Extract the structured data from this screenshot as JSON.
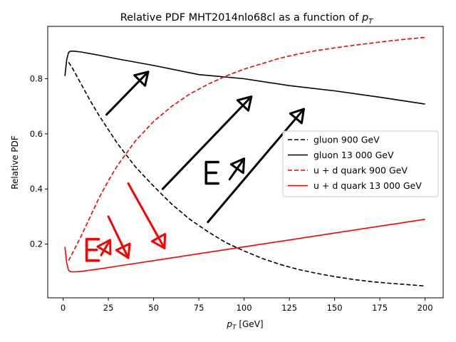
{
  "chart_data": {
    "type": "line",
    "title": "Relative PDF MHT2014nlo68cl as a function of p_T",
    "title_prefix": "Relative PDF MHT2014nlo68cl as a function of ",
    "title_symbol": "p",
    "title_subscript": "T",
    "xlabel_symbol": "p",
    "xlabel_subscript": "T",
    "xlabel_suffix": " [GeV]",
    "ylabel": "Relative PDF",
    "xlim": [
      -8.5,
      210
    ],
    "ylim": [
      0.005,
      0.99
    ],
    "xticks": [
      0,
      25,
      50,
      75,
      100,
      125,
      150,
      175,
      200
    ],
    "yticks": [
      0.2,
      0.4,
      0.6,
      0.8
    ],
    "ytick_labels": [
      "0.2",
      "0.4",
      "0.6",
      "0.8"
    ],
    "grid": false,
    "legend_position": "center-right",
    "series": [
      {
        "name": "gluon 900 GeV",
        "color": "#000000",
        "dash": "dashed",
        "x": [
          3,
          5,
          10,
          15,
          20,
          25,
          30,
          40,
          50,
          60,
          70,
          80,
          90,
          100,
          110,
          120,
          130,
          140,
          150,
          160,
          170,
          180,
          190,
          200
        ],
        "y": [
          0.86,
          0.84,
          0.78,
          0.72,
          0.665,
          0.615,
          0.565,
          0.48,
          0.41,
          0.345,
          0.29,
          0.245,
          0.205,
          0.175,
          0.148,
          0.126,
          0.108,
          0.094,
          0.082,
          0.072,
          0.064,
          0.058,
          0.053,
          0.048
        ]
      },
      {
        "name": "gluon 13 000 GeV",
        "color": "#000000",
        "dash": "solid",
        "x": [
          1,
          2,
          3,
          4,
          6,
          10,
          20,
          30,
          50,
          75,
          100,
          125,
          150,
          175,
          200
        ],
        "y": [
          0.81,
          0.87,
          0.895,
          0.9,
          0.9,
          0.897,
          0.885,
          0.872,
          0.848,
          0.815,
          0.8,
          0.775,
          0.756,
          0.733,
          0.708
        ]
      },
      {
        "name": "u + d quark 900 GeV",
        "color": "#ff0000",
        "dash": "dashed",
        "x": [
          3,
          5,
          10,
          15,
          20,
          25,
          30,
          40,
          50,
          60,
          70,
          80,
          90,
          100,
          110,
          120,
          130,
          140,
          150,
          160,
          170,
          180,
          190,
          200
        ],
        "y": [
          0.14,
          0.165,
          0.23,
          0.3,
          0.37,
          0.43,
          0.485,
          0.575,
          0.645,
          0.7,
          0.745,
          0.78,
          0.81,
          0.835,
          0.855,
          0.875,
          0.89,
          0.902,
          0.912,
          0.921,
          0.929,
          0.937,
          0.944,
          0.95
        ]
      },
      {
        "name": "u + d quark 13 000 GeV",
        "color": "#ff0000",
        "dash": "solid",
        "x": [
          1,
          2,
          3,
          4,
          6,
          10,
          20,
          30,
          50,
          75,
          100,
          125,
          150,
          175,
          200
        ],
        "y": [
          0.19,
          0.13,
          0.105,
          0.1,
          0.099,
          0.101,
          0.11,
          0.12,
          0.14,
          0.165,
          0.19,
          0.215,
          0.24,
          0.265,
          0.29
        ]
      }
    ],
    "annotations": [
      {
        "kind": "arrow",
        "color": "#000000",
        "from": [
          24,
          0.67
        ],
        "to": [
          47,
          0.825
        ]
      },
      {
        "kind": "arrow",
        "color": "#000000",
        "from": [
          55,
          0.4
        ],
        "to": [
          104,
          0.735
        ]
      },
      {
        "kind": "arrow",
        "color": "#000000",
        "from": [
          80,
          0.28
        ],
        "to": [
          133,
          0.69
        ]
      },
      {
        "kind": "arrow",
        "color": "#000000",
        "from": [
          92,
          0.435
        ],
        "to": [
          100,
          0.51
        ]
      },
      {
        "kind": "arrow",
        "color": "#ff0000",
        "from": [
          25,
          0.3
        ],
        "to": [
          36,
          0.15
        ]
      },
      {
        "kind": "arrow",
        "color": "#ff0000",
        "from": [
          36,
          0.42
        ],
        "to": [
          56,
          0.185
        ]
      },
      {
        "kind": "arrow",
        "color": "#ff0000",
        "from": [
          21,
          0.16
        ],
        "to": [
          26,
          0.215
        ]
      },
      {
        "kind": "letter-E",
        "color": "#000000",
        "at": [
          79,
          0.42
        ]
      },
      {
        "kind": "letter-E",
        "color": "#ff0000",
        "at": [
          13,
          0.14
        ]
      }
    ]
  }
}
